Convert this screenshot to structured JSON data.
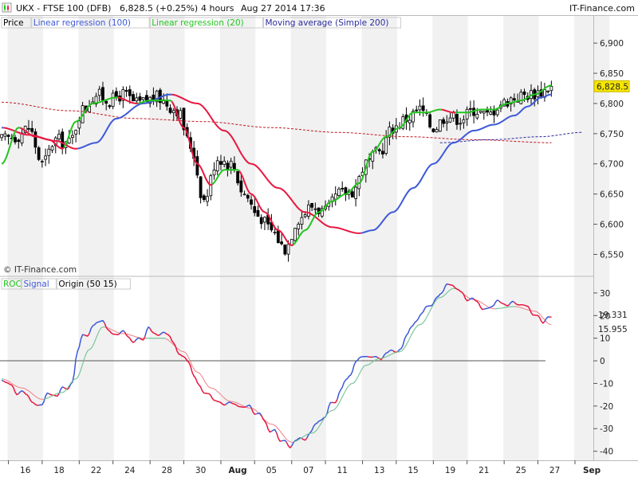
{
  "header": {
    "symbol": "UKX - FTSE 100 (DFB)",
    "price_change": "6,828.5 (+0.25%)",
    "timeframe": "4 hours",
    "datetime": "Aug 27 2014 17:36",
    "brand": "IT-Finance.com"
  },
  "copyright": "© IT-Finance.com",
  "colors": {
    "background": "#ffffff",
    "stripe": "#f1f1f1",
    "candle_up": "#ffffff",
    "candle_down": "#000000",
    "linreg100": "#e8173f",
    "linreg20": "#22c51e",
    "sma200": "#c0181f",
    "sma200_forecast": "#2a2aa0",
    "roc_blue": "#3d58d8",
    "roc_red": "#e8173f",
    "roc_green": "#22c51e",
    "signal_blue": "#4a7fe0",
    "signal_red": "#f07f85",
    "signal_green": "#7dd978",
    "zero_line": "#555555",
    "price_badge": "#f6e600"
  },
  "chart_data": [
    {
      "type": "candlestick",
      "panel": "price",
      "legend": [
        {
          "label": "Price",
          "color": "#000000"
        },
        {
          "label": "Linear regression (100)",
          "color": "#3d58d8"
        },
        {
          "label": "Linear regression (20)",
          "color": "#22c51e"
        },
        {
          "label": "Moving average (Simple 200)",
          "color": "#2a2aa0"
        }
      ],
      "ylim": [
        6515,
        6945
      ],
      "yticks": [
        6550,
        6600,
        6650,
        6700,
        6750,
        6800,
        6850,
        6900
      ],
      "ytick_labels": [
        "6,550",
        "6,600",
        "6,650",
        "6,700",
        "6,750",
        "6,800",
        "6,850",
        "6,900"
      ],
      "last_price": 6828.5,
      "last_price_label": "6,828.5",
      "close_anchors": [
        [
          0,
          6740
        ],
        [
          4,
          6745
        ],
        [
          8,
          6760
        ],
        [
          12,
          6700
        ],
        [
          16,
          6740
        ],
        [
          20,
          6735
        ],
        [
          24,
          6790
        ],
        [
          28,
          6815
        ],
        [
          32,
          6805
        ],
        [
          36,
          6815
        ],
        [
          40,
          6800
        ],
        [
          46,
          6810
        ],
        [
          52,
          6790
        ],
        [
          56,
          6730
        ],
        [
          60,
          6640
        ],
        [
          64,
          6710
        ],
        [
          68,
          6700
        ],
        [
          72,
          6650
        ],
        [
          76,
          6615
        ],
        [
          80,
          6590
        ],
        [
          84,
          6560
        ],
        [
          88,
          6610
        ],
        [
          92,
          6630
        ],
        [
          96,
          6620
        ],
        [
          100,
          6650
        ],
        [
          104,
          6655
        ],
        [
          108,
          6700
        ],
        [
          112,
          6720
        ],
        [
          116,
          6760
        ],
        [
          120,
          6775
        ],
        [
          124,
          6790
        ],
        [
          128,
          6760
        ],
        [
          132,
          6780
        ],
        [
          136,
          6775
        ],
        [
          140,
          6790
        ],
        [
          144,
          6780
        ],
        [
          148,
          6800
        ],
        [
          152,
          6810
        ],
        [
          156,
          6815
        ],
        [
          160,
          6820
        ],
        [
          163,
          6828.5
        ]
      ],
      "linreg20_anchors": [
        [
          0,
          6700
        ],
        [
          5,
          6760
        ],
        [
          10,
          6745
        ],
        [
          14,
          6740
        ],
        [
          18,
          6725
        ],
        [
          22,
          6770
        ],
        [
          27,
          6800
        ],
        [
          34,
          6810
        ],
        [
          40,
          6800
        ],
        [
          44,
          6805
        ],
        [
          50,
          6805
        ],
        [
          54,
          6760
        ],
        [
          58,
          6700
        ],
        [
          62,
          6665
        ],
        [
          66,
          6690
        ],
        [
          70,
          6690
        ],
        [
          74,
          6650
        ],
        [
          78,
          6620
        ],
        [
          82,
          6590
        ],
        [
          86,
          6565
        ],
        [
          90,
          6590
        ],
        [
          94,
          6620
        ],
        [
          98,
          6638
        ],
        [
          102,
          6650
        ],
        [
          106,
          6668
        ],
        [
          110,
          6720
        ],
        [
          114,
          6745
        ],
        [
          118,
          6760
        ],
        [
          122,
          6785
        ],
        [
          126,
          6785
        ],
        [
          130,
          6790
        ],
        [
          134,
          6785
        ],
        [
          138,
          6785
        ],
        [
          142,
          6790
        ],
        [
          146,
          6790
        ],
        [
          150,
          6800
        ],
        [
          154,
          6805
        ],
        [
          158,
          6815
        ],
        [
          163,
          6830
        ]
      ],
      "linreg100_anchors": [
        [
          0,
          6760
        ],
        [
          8,
          6748
        ],
        [
          16,
          6738
        ],
        [
          22,
          6725
        ],
        [
          28,
          6735
        ],
        [
          34,
          6775
        ],
        [
          42,
          6800
        ],
        [
          50,
          6815
        ],
        [
          58,
          6800
        ],
        [
          66,
          6755
        ],
        [
          74,
          6700
        ],
        [
          82,
          6660
        ],
        [
          90,
          6620
        ],
        [
          98,
          6595
        ],
        [
          106,
          6585
        ],
        [
          110,
          6590
        ],
        [
          116,
          6620
        ],
        [
          122,
          6660
        ],
        [
          128,
          6700
        ],
        [
          134,
          6735
        ],
        [
          140,
          6755
        ],
        [
          146,
          6765
        ],
        [
          152,
          6780
        ],
        [
          156,
          6795
        ],
        [
          160,
          6810
        ],
        [
          163,
          6815
        ]
      ],
      "sma200_anchors": [
        [
          0,
          6802
        ],
        [
          20,
          6788
        ],
        [
          40,
          6775
        ],
        [
          60,
          6770
        ],
        [
          80,
          6760
        ],
        [
          100,
          6752
        ],
        [
          120,
          6745
        ],
        [
          140,
          6740
        ],
        [
          163,
          6735
        ]
      ],
      "sma200_forecast_anchors": [
        [
          130,
          6735
        ],
        [
          145,
          6740
        ],
        [
          160,
          6745
        ],
        [
          172,
          6752
        ]
      ]
    },
    {
      "type": "line",
      "panel": "oscillator",
      "legend": [
        {
          "label": "ROC",
          "color": "#22c51e"
        },
        {
          "label": "Signal",
          "color": "#3d58d8"
        },
        {
          "label": "Origin (50 15)",
          "color": "#000000"
        }
      ],
      "ylim": [
        -44,
        37
      ],
      "yticks": [
        30,
        20,
        10,
        0,
        -10,
        -20,
        -30,
        -40
      ],
      "ytick_labels": [
        "30",
        "20",
        "10",
        "0",
        "-10",
        "-20",
        "-30",
        "-40"
      ],
      "zero_line": 0,
      "roc_last_label": "19.331",
      "signal_last_label": "15.955",
      "roc_anchors": [
        [
          0,
          -10
        ],
        [
          6,
          -15
        ],
        [
          10,
          -19
        ],
        [
          16,
          -14
        ],
        [
          20,
          -12
        ],
        [
          24,
          10
        ],
        [
          28,
          18
        ],
        [
          32,
          14
        ],
        [
          36,
          12
        ],
        [
          40,
          8
        ],
        [
          44,
          14
        ],
        [
          50,
          10
        ],
        [
          54,
          2
        ],
        [
          58,
          -10
        ],
        [
          62,
          -15
        ],
        [
          66,
          -20
        ],
        [
          72,
          -20
        ],
        [
          76,
          -24
        ],
        [
          80,
          -30
        ],
        [
          84,
          -36
        ],
        [
          86,
          -38
        ],
        [
          90,
          -34
        ],
        [
          94,
          -28
        ],
        [
          98,
          -20
        ],
        [
          102,
          -10
        ],
        [
          106,
          0
        ],
        [
          110,
          2
        ],
        [
          114,
          2
        ],
        [
          118,
          5
        ],
        [
          122,
          15
        ],
        [
          126,
          24
        ],
        [
          130,
          30
        ],
        [
          133,
          33
        ],
        [
          136,
          30
        ],
        [
          140,
          26
        ],
        [
          144,
          24
        ],
        [
          148,
          26
        ],
        [
          152,
          25
        ],
        [
          156,
          24
        ],
        [
          160,
          17
        ],
        [
          163,
          19.331
        ]
      ],
      "signal_anchors": [
        [
          0,
          -8
        ],
        [
          6,
          -12
        ],
        [
          12,
          -17
        ],
        [
          18,
          -14
        ],
        [
          22,
          -8
        ],
        [
          26,
          5
        ],
        [
          30,
          15
        ],
        [
          36,
          12
        ],
        [
          42,
          10
        ],
        [
          48,
          10
        ],
        [
          54,
          4
        ],
        [
          58,
          -5
        ],
        [
          62,
          -12
        ],
        [
          68,
          -18
        ],
        [
          74,
          -21
        ],
        [
          80,
          -28
        ],
        [
          86,
          -36
        ],
        [
          92,
          -32
        ],
        [
          98,
          -22
        ],
        [
          104,
          -10
        ],
        [
          108,
          -2
        ],
        [
          112,
          1
        ],
        [
          118,
          4
        ],
        [
          124,
          16
        ],
        [
          130,
          28
        ],
        [
          134,
          32
        ],
        [
          140,
          27
        ],
        [
          146,
          23
        ],
        [
          152,
          24
        ],
        [
          158,
          22
        ],
        [
          163,
          15.955
        ]
      ]
    }
  ],
  "x_axis": {
    "tick_positions": [
      7,
      17,
      28,
      38,
      49,
      59,
      70,
      80,
      91,
      101,
      112,
      122,
      133,
      143,
      154,
      164,
      175
    ],
    "tick_labels": [
      "16",
      "18",
      "22",
      "24",
      "28",
      "30",
      "Aug",
      "05",
      "07",
      "11",
      "13",
      "15",
      "19",
      "21",
      "25",
      "27",
      "Sep"
    ],
    "bold_labels": [
      "Aug",
      "Sep"
    ]
  }
}
